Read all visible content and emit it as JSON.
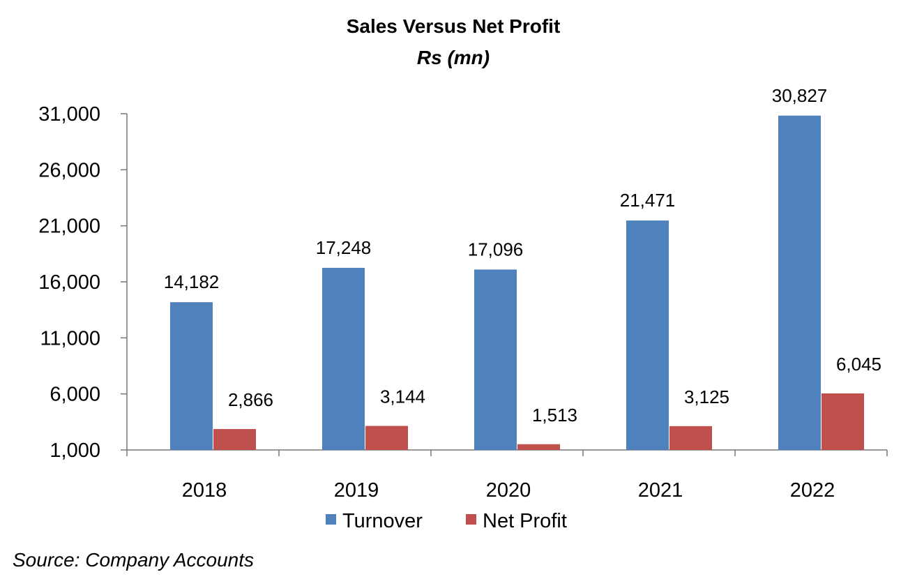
{
  "chart_data": {
    "type": "bar",
    "title": "Sales Versus Net Profit",
    "subtitle": "Rs (mn)",
    "categories": [
      "2018",
      "2019",
      "2020",
      "2021",
      "2022"
    ],
    "series": [
      {
        "name": "Turnover",
        "color": "#4f81bd",
        "values": [
          14182,
          17248,
          17096,
          21471,
          30827
        ],
        "labels": [
          "14,182",
          "17,248",
          "17,096",
          "21,471",
          "30,827"
        ]
      },
      {
        "name": "Net Profit",
        "color": "#c0504d",
        "values": [
          2866,
          3144,
          1513,
          3125,
          6045
        ],
        "labels": [
          "2,866",
          "3,144",
          "1,513",
          "3,125",
          "6,045"
        ]
      }
    ],
    "ylim": [
      1000,
      31000
    ],
    "yticks": [
      1000,
      6000,
      11000,
      16000,
      21000,
      26000,
      31000
    ],
    "ytick_labels": [
      "1,000",
      "6,000",
      "11,000",
      "16,000",
      "21,000",
      "26,000",
      "31,000"
    ],
    "xlabel": "",
    "ylabel": "",
    "grid": false,
    "legend_position": "bottom"
  },
  "source": "Source: Company Accounts"
}
